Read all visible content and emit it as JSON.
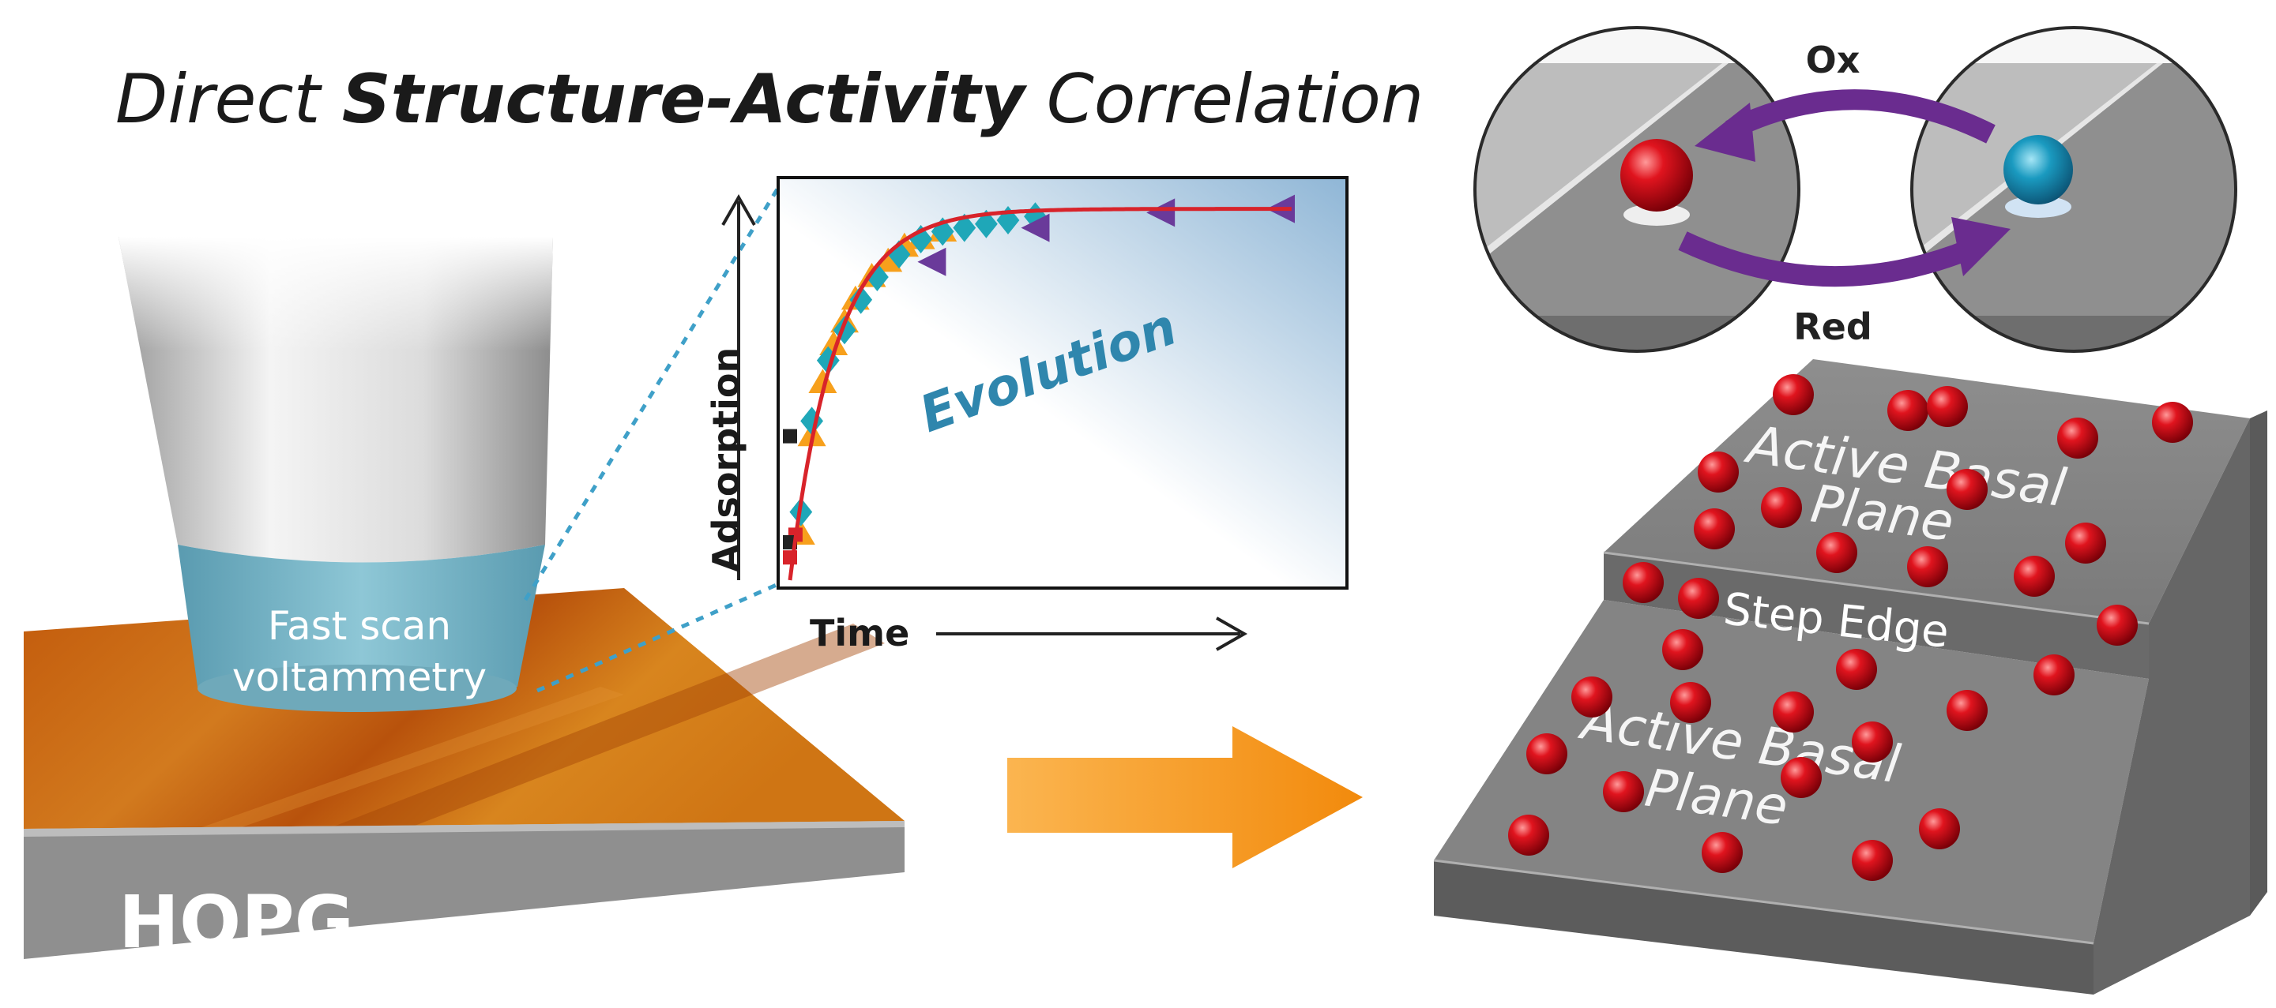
{
  "title": {
    "prefix": "Direct ",
    "bold": "Structure-Activity",
    "suffix": " Correlation"
  },
  "labels": {
    "hopg": "HOPG",
    "fsv_line1": "Fast scan",
    "fsv_line2": "voltammetry",
    "x_axis": "Time",
    "y_axis": "Adsorption",
    "evolution": "Evolution",
    "ox": "Ox",
    "red": "Red",
    "plane_top_line1": "Active Basal",
    "plane_top_line2": "Plane",
    "step_edge": "Step Edge",
    "plane_bottom_line1": "Active Basal",
    "plane_bottom_line2": "Plane"
  },
  "colors": {
    "orange_arrow": "#f7a01c",
    "purple_arrow": "#6a2c8f",
    "sphere_red": "#d0101a",
    "sphere_blue": "#1a9ac0",
    "fit_line": "#d8232a",
    "block_gray": "#8a8a8a"
  },
  "chart_data": {
    "type": "scatter",
    "title": "",
    "xlabel": "Time",
    "ylabel": "Adsorption",
    "ticks_shown": false,
    "series": [
      {
        "name": "",
        "marker": "triangle",
        "color": "#f7a01c",
        "x": [
          0.02,
          0.04,
          0.06,
          0.08,
          0.1,
          0.12,
          0.15,
          0.18,
          0.21,
          0.24,
          0.28
        ],
        "y": [
          0.12,
          0.38,
          0.52,
          0.62,
          0.68,
          0.74,
          0.8,
          0.84,
          0.88,
          0.9,
          0.92
        ]
      },
      {
        "name": "",
        "marker": "diamond",
        "color": "#1fa7b8",
        "x": [
          0.02,
          0.04,
          0.07,
          0.1,
          0.13,
          0.16,
          0.2,
          0.24,
          0.28,
          0.32,
          0.36,
          0.4,
          0.45
        ],
        "y": [
          0.18,
          0.42,
          0.58,
          0.66,
          0.74,
          0.8,
          0.86,
          0.9,
          0.92,
          0.93,
          0.94,
          0.95,
          0.96
        ]
      },
      {
        "name": "",
        "marker": "triangle-left",
        "color": "#6a3a9a",
        "x": [
          0.26,
          0.45,
          0.68,
          0.9
        ],
        "y": [
          0.84,
          0.93,
          0.97,
          0.98
        ]
      },
      {
        "name": "",
        "marker": "square",
        "color": "#d8232a",
        "x": [
          0.0,
          0.01
        ],
        "y": [
          0.06,
          0.12
        ]
      },
      {
        "name": "",
        "marker": "square",
        "color": "#222222",
        "x": [
          0.0,
          0.0
        ],
        "y": [
          0.1,
          0.38
        ]
      }
    ],
    "fit": {
      "color": "#d8232a",
      "model": "1 - exp(-x/0.085)",
      "ylim": [
        0,
        1
      ],
      "xlim": [
        0,
        1
      ]
    }
  }
}
